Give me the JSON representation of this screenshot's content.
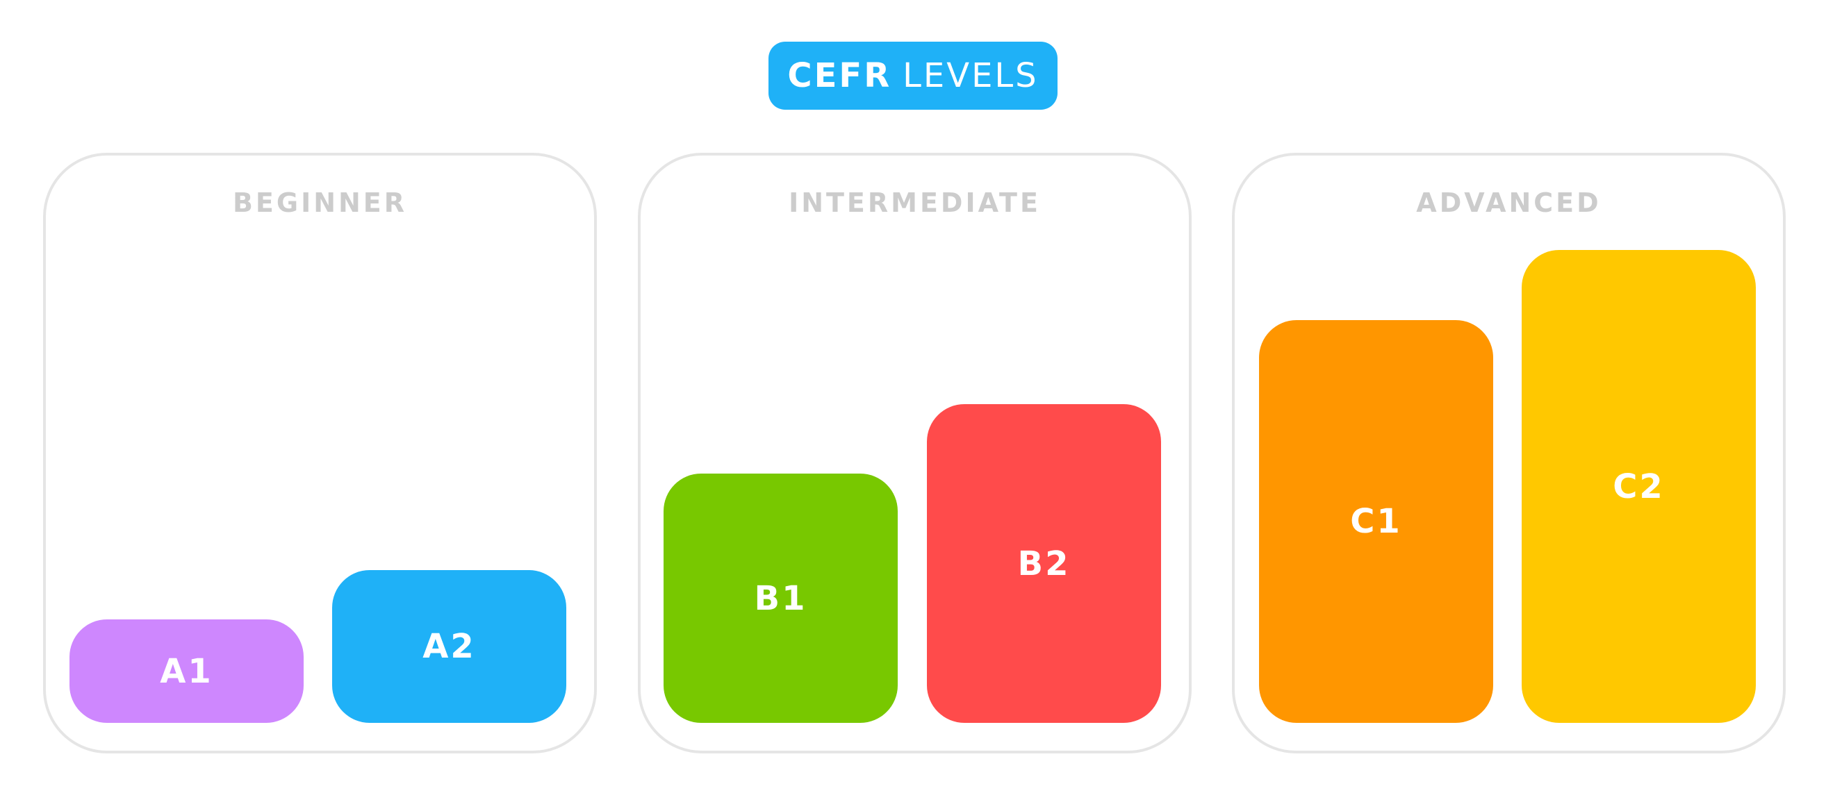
{
  "title": {
    "bold": "CEFR",
    "light": "LEVELS",
    "color": "#1fb1f7"
  },
  "groups": [
    {
      "label": "BEGINNER",
      "levels": [
        {
          "label": "A1",
          "color": "#ce87fe"
        },
        {
          "label": "A2",
          "color": "#1fb1f7"
        }
      ]
    },
    {
      "label": "INTERMEDIATE",
      "levels": [
        {
          "label": "B1",
          "color": "#78c800"
        },
        {
          "label": "B2",
          "color": "#ff4b4b"
        }
      ]
    },
    {
      "label": "ADVANCED",
      "levels": [
        {
          "label": "C1",
          "color": "#ff9600"
        },
        {
          "label": "C2",
          "color": "#ffc800"
        }
      ]
    }
  ]
}
